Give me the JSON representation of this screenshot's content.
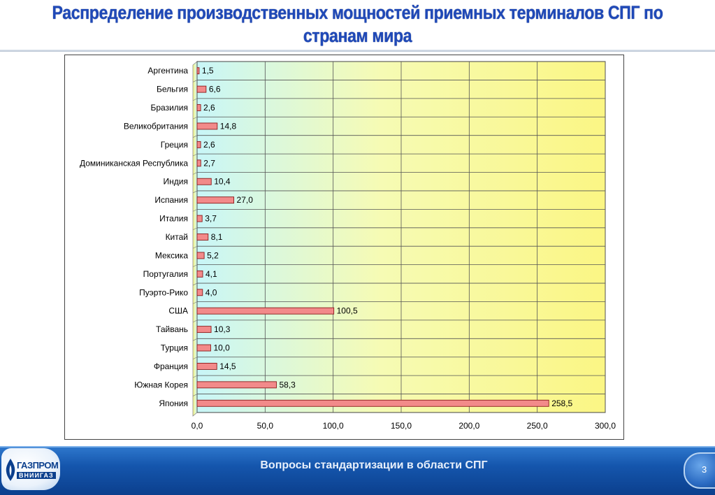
{
  "slide": {
    "title": "Распределение производственных мощностей приемных терминалов СПГ по странам мира"
  },
  "footer": {
    "text": "Вопросы стандартизации в области СПГ",
    "page_number": "3",
    "logo_text_main": "ГАЗПРОМ",
    "logo_text_sub": "ВНИИГАЗ"
  },
  "colors": {
    "title": "#1f49b8",
    "bar_fill": "#f28a8a",
    "bar_stroke": "#8b1a1a",
    "footer": "#1556ad"
  },
  "chart_data": {
    "type": "bar",
    "orientation": "horizontal",
    "title": "",
    "xlabel": "",
    "ylabel": "",
    "xlim": [
      0,
      300
    ],
    "x_ticks": [
      "0,0",
      "50,0",
      "100,0",
      "150,0",
      "200,0",
      "250,0",
      "300,0"
    ],
    "grid": true,
    "legend": "none",
    "categories": [
      "Аргентина",
      "Бельгия",
      "Бразилия",
      "Великобритания",
      "Греция",
      "Доминиканская Республика",
      "Индия",
      "Испания",
      "Италия",
      "Китай",
      "Мексика",
      "Португалия",
      "Пуэрто-Рико",
      "США",
      "Тайвань",
      "Турция",
      "Франция",
      "Южная Корея",
      "Япония"
    ],
    "values": [
      1.5,
      6.6,
      2.6,
      14.8,
      2.6,
      2.7,
      10.4,
      27.0,
      3.7,
      8.1,
      5.2,
      4.1,
      4.0,
      100.5,
      10.3,
      10.0,
      14.5,
      58.3,
      258.5
    ],
    "value_labels": [
      "1,5",
      "6,6",
      "2,6",
      "14,8",
      "2,6",
      "2,7",
      "10,4",
      "27,0",
      "3,7",
      "8,1",
      "5,2",
      "4,1",
      "4,0",
      "100,5",
      "10,3",
      "10,0",
      "14,5",
      "58,3",
      "258,5"
    ]
  }
}
